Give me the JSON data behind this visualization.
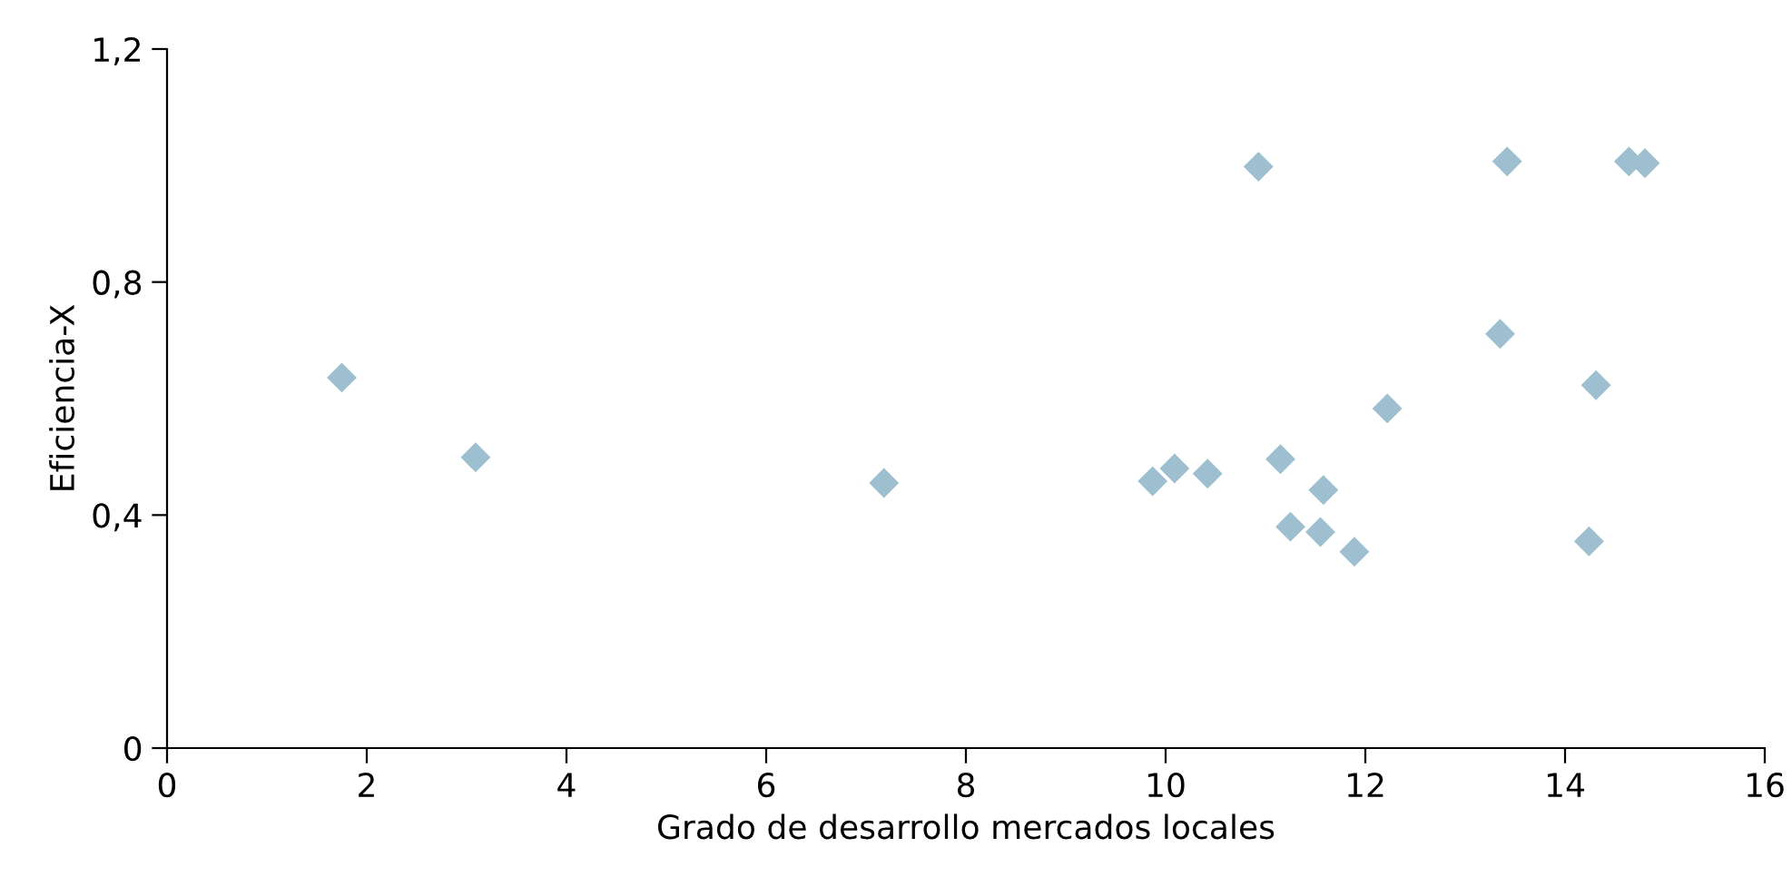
{
  "chart_data": {
    "type": "scatter",
    "xlabel": "Grado de desarrollo mercados locales",
    "ylabel": "Eficiencia-X",
    "x": [
      1.75,
      3.09,
      7.18,
      9.87,
      10.09,
      10.42,
      10.93,
      11.15,
      11.25,
      11.55,
      11.58,
      11.89,
      12.22,
      13.35,
      13.42,
      14.31,
      14.24,
      14.64,
      14.8
    ],
    "values": [
      0.636,
      0.499,
      0.455,
      0.458,
      0.48,
      0.471,
      0.998,
      0.496,
      0.38,
      0.371,
      0.443,
      0.337,
      0.583,
      0.711,
      1.007,
      0.623,
      0.355,
      1.007,
      1.004
    ],
    "color": "#9dbfcf",
    "marker": "diamond",
    "grid": false,
    "legend": false,
    "xlim": [
      0,
      16
    ],
    "xticks": [
      0,
      2,
      4,
      6,
      8,
      10,
      12,
      14,
      16
    ],
    "ylim": [
      0,
      1.2
    ],
    "yticks": [
      0,
      {
        "value": 0.4,
        "label": "0,4"
      },
      {
        "value": 0.8,
        "label": "0,8"
      },
      {
        "value": 1.2,
        "label": "1,2"
      }
    ]
  }
}
